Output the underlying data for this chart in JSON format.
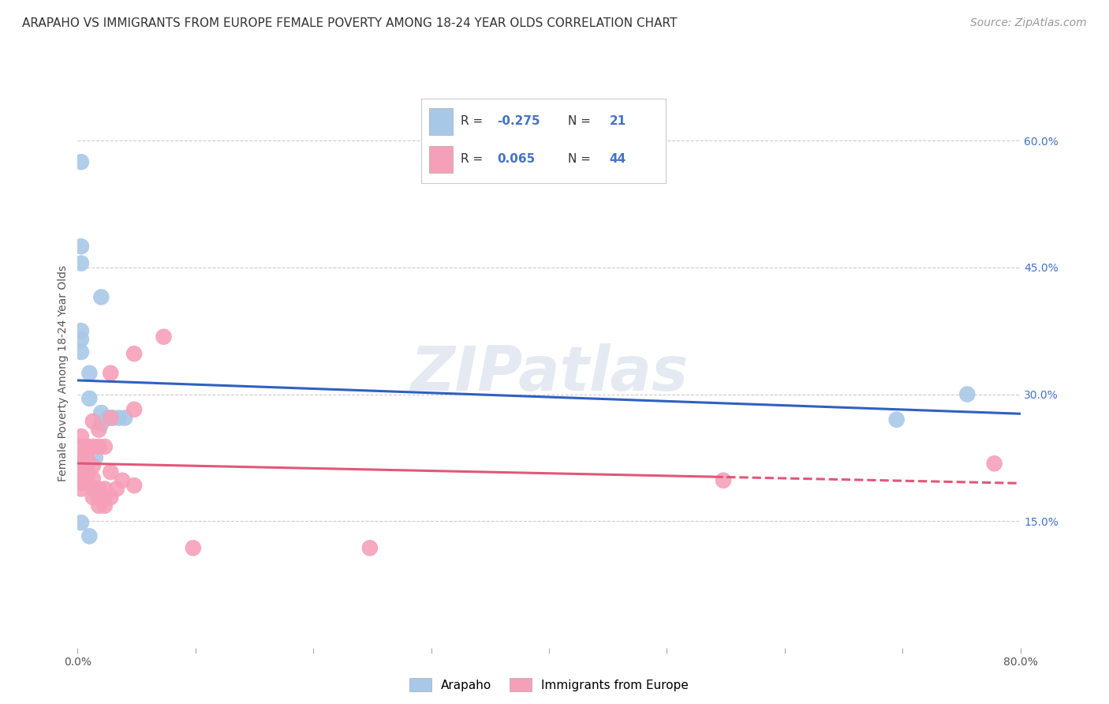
{
  "title": "ARAPAHO VS IMMIGRANTS FROM EUROPE FEMALE POVERTY AMONG 18-24 YEAR OLDS CORRELATION CHART",
  "source": "Source: ZipAtlas.com",
  "ylabel": "Female Poverty Among 18-24 Year Olds",
  "xlim": [
    0,
    0.8
  ],
  "ylim": [
    0,
    0.65
  ],
  "arapaho_R": -0.275,
  "arapaho_N": 21,
  "europe_R": 0.065,
  "europe_N": 44,
  "arapaho_color": "#a8c8e8",
  "europe_color": "#f5a0b8",
  "arapaho_line_color": "#3060c0",
  "europe_line_color": "#e05878",
  "arapaho_points": [
    [
      0.003,
      0.575
    ],
    [
      0.003,
      0.475
    ],
    [
      0.003,
      0.455
    ],
    [
      0.003,
      0.375
    ],
    [
      0.003,
      0.365
    ],
    [
      0.003,
      0.35
    ],
    [
      0.003,
      0.225
    ],
    [
      0.003,
      0.148
    ],
    [
      0.01,
      0.325
    ],
    [
      0.01,
      0.295
    ],
    [
      0.01,
      0.132
    ],
    [
      0.015,
      0.225
    ],
    [
      0.02,
      0.415
    ],
    [
      0.02,
      0.278
    ],
    [
      0.02,
      0.265
    ],
    [
      0.025,
      0.272
    ],
    [
      0.03,
      0.272
    ],
    [
      0.035,
      0.272
    ],
    [
      0.04,
      0.272
    ],
    [
      0.695,
      0.27
    ],
    [
      0.755,
      0.3
    ]
  ],
  "europe_points": [
    [
      0.003,
      0.25
    ],
    [
      0.003,
      0.238
    ],
    [
      0.003,
      0.228
    ],
    [
      0.003,
      0.222
    ],
    [
      0.003,
      0.215
    ],
    [
      0.003,
      0.21
    ],
    [
      0.003,
      0.205
    ],
    [
      0.003,
      0.2
    ],
    [
      0.003,
      0.195
    ],
    [
      0.003,
      0.188
    ],
    [
      0.008,
      0.238
    ],
    [
      0.008,
      0.225
    ],
    [
      0.008,
      0.215
    ],
    [
      0.008,
      0.205
    ],
    [
      0.008,
      0.195
    ],
    [
      0.013,
      0.268
    ],
    [
      0.013,
      0.238
    ],
    [
      0.013,
      0.215
    ],
    [
      0.013,
      0.2
    ],
    [
      0.013,
      0.188
    ],
    [
      0.013,
      0.178
    ],
    [
      0.018,
      0.258
    ],
    [
      0.018,
      0.238
    ],
    [
      0.018,
      0.188
    ],
    [
      0.018,
      0.178
    ],
    [
      0.018,
      0.168
    ],
    [
      0.023,
      0.238
    ],
    [
      0.023,
      0.188
    ],
    [
      0.023,
      0.178
    ],
    [
      0.023,
      0.168
    ],
    [
      0.028,
      0.325
    ],
    [
      0.028,
      0.272
    ],
    [
      0.028,
      0.208
    ],
    [
      0.028,
      0.178
    ],
    [
      0.033,
      0.188
    ],
    [
      0.038,
      0.198
    ],
    [
      0.048,
      0.348
    ],
    [
      0.048,
      0.282
    ],
    [
      0.048,
      0.192
    ],
    [
      0.073,
      0.368
    ],
    [
      0.098,
      0.118
    ],
    [
      0.248,
      0.118
    ],
    [
      0.548,
      0.198
    ],
    [
      0.778,
      0.218
    ]
  ],
  "background_color": "#ffffff",
  "grid_color": "#cccccc",
  "title_fontsize": 11,
  "label_fontsize": 10,
  "tick_fontsize": 10,
  "source_fontsize": 10
}
